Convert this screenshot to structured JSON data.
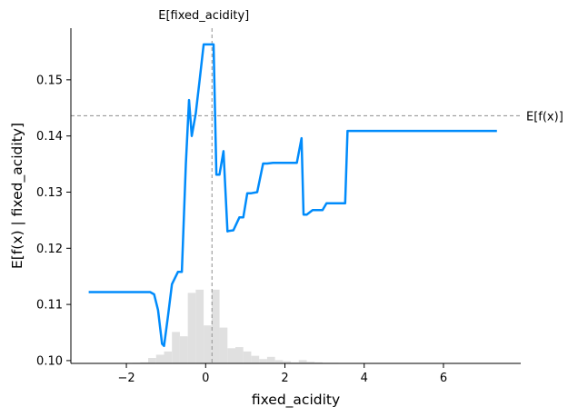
{
  "chart_data": {
    "type": "line",
    "xlabel": "fixed_acidity",
    "ylabel": "E[f(x) | fixed_acidity]",
    "xlim": [
      -3.4,
      7.95
    ],
    "ylim": [
      0.0995,
      0.1592
    ],
    "x_ticks": [
      -2,
      0,
      2,
      4,
      6
    ],
    "y_ticks": [
      0.1,
      0.11,
      0.12,
      0.13,
      0.14,
      0.15
    ],
    "x_tick_labels": [
      "−2",
      "0",
      "2",
      "4",
      "6"
    ],
    "y_tick_labels": [
      "0.10",
      "0.11",
      "0.12",
      "0.13",
      "0.14",
      "0.15"
    ],
    "expected_x": {
      "label": "E[fixed_acidity]",
      "value": 0.16
    },
    "expected_fx": {
      "label": "E[f(x)]",
      "value": 0.1436
    },
    "series": [
      {
        "x": [
          -2.95,
          -2.8,
          -2.4,
          -2.0,
          -1.6,
          -1.4,
          -1.3,
          -1.2,
          -1.1,
          -1.05,
          -0.95,
          -0.85,
          -0.7,
          -0.6,
          -0.5,
          -0.42,
          -0.35,
          -0.25,
          -0.15,
          -0.05,
          0.05,
          0.1,
          0.2,
          0.27,
          0.35,
          0.45,
          0.55,
          0.6,
          0.7,
          0.85,
          0.95,
          1.05,
          1.15,
          1.3,
          1.45,
          1.55,
          1.7,
          2.0,
          2.3,
          2.42,
          2.47,
          2.55,
          2.7,
          2.95,
          3.05,
          3.1,
          3.4,
          3.52,
          3.58,
          4.2,
          5.0,
          6.0,
          7.35
        ],
        "y": [
          0.1122,
          0.1122,
          0.1122,
          0.1122,
          0.1122,
          0.1122,
          0.1118,
          0.109,
          0.103,
          0.1026,
          0.108,
          0.1136,
          0.1158,
          0.1158,
          0.135,
          0.1464,
          0.14,
          0.144,
          0.15,
          0.1563,
          0.1563,
          0.1563,
          0.1563,
          0.1331,
          0.1331,
          0.1373,
          0.123,
          0.1231,
          0.1232,
          0.1255,
          0.1255,
          0.1298,
          0.1298,
          0.13,
          0.1351,
          0.1351,
          0.1352,
          0.1352,
          0.1352,
          0.1396,
          0.126,
          0.126,
          0.1268,
          0.1268,
          0.128,
          0.128,
          0.128,
          0.128,
          0.1409,
          0.1409,
          0.1409,
          0.1409,
          0.1409
        ]
      }
    ],
    "histogram": {
      "edges": [
        -2.05,
        -1.85,
        -1.65,
        -1.45,
        -1.25,
        -1.05,
        -0.85,
        -0.65,
        -0.45,
        -0.25,
        -0.05,
        0.15,
        0.35,
        0.55,
        0.75,
        0.95,
        1.15,
        1.35,
        1.55,
        1.75,
        1.95,
        2.15,
        2.35,
        2.55,
        2.75,
        2.95,
        3.15,
        3.35
      ],
      "counts": [
        0,
        0.05,
        0.1,
        0.5,
        0.8,
        1.1,
        2.9,
        2.5,
        6.5,
        6.8,
        3.5,
        6.8,
        3.3,
        1.4,
        1.5,
        1.1,
        0.7,
        0.4,
        0.6,
        0.3,
        0.2,
        0.1,
        0.3,
        0.15,
        0.1,
        0.05,
        0.05
      ],
      "max_height_fraction": 0.22
    }
  }
}
